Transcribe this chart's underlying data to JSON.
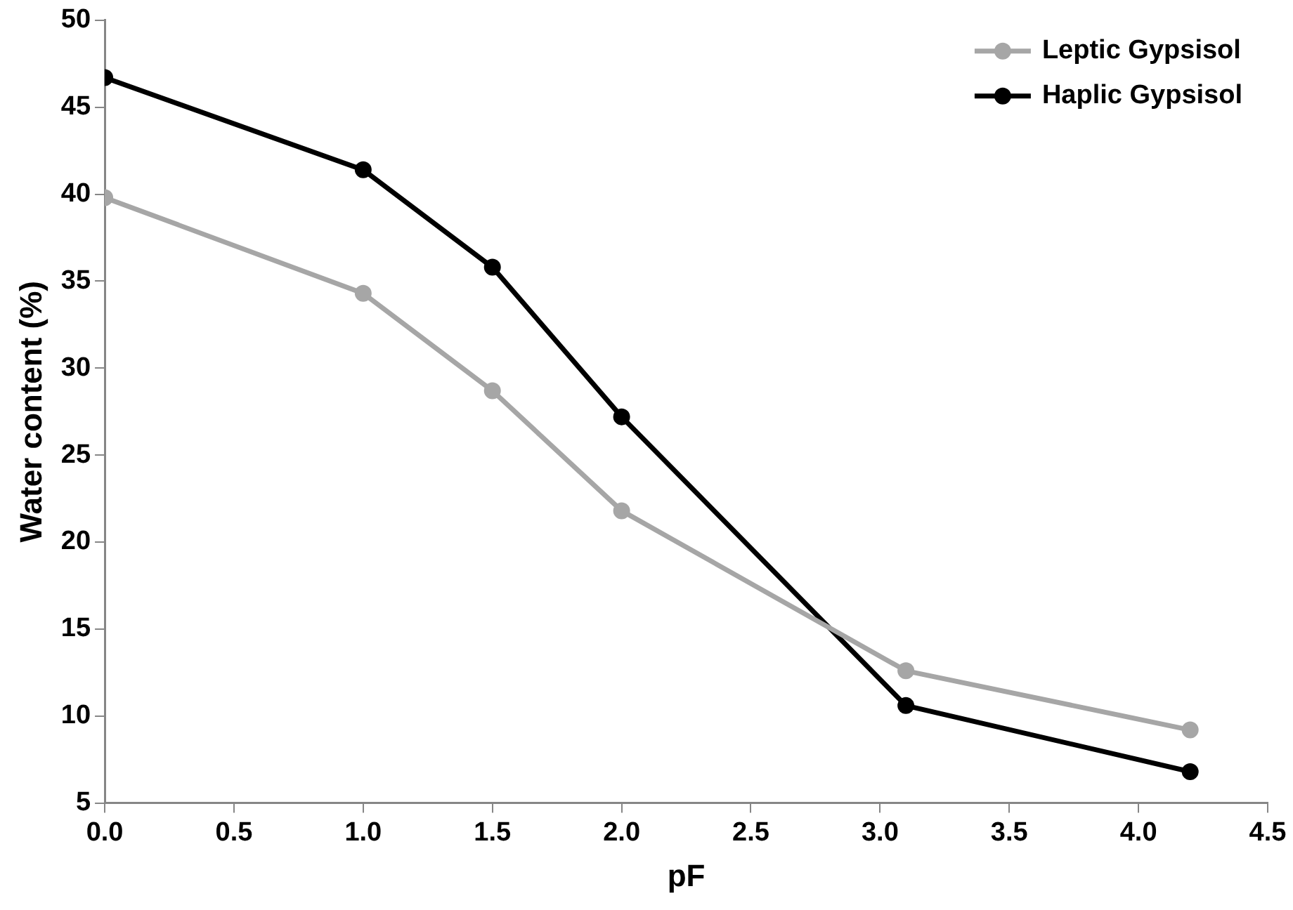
{
  "chart_data": {
    "type": "line",
    "xlabel": "pF",
    "ylabel": "Water content (%)",
    "x": [
      0,
      1,
      1.5,
      2,
      3.1,
      4.2
    ],
    "series": [
      {
        "name": "Leptic Gypsisol",
        "color": "#a6a6a6",
        "values": [
          39.8,
          34.3,
          28.7,
          21.8,
          12.6,
          9.2
        ]
      },
      {
        "name": "Haplic Gypsisol",
        "color": "#000000",
        "values": [
          46.7,
          41.4,
          35.8,
          27.2,
          10.6,
          6.8
        ]
      }
    ],
    "xlim": [
      0,
      4.5
    ],
    "xticks": [
      {
        "value": 0,
        "label": "0.0"
      },
      {
        "value": 0.5,
        "label": "0.5"
      },
      {
        "value": 1,
        "label": "1.0"
      },
      {
        "value": 1.5,
        "label": "1.5"
      },
      {
        "value": 2,
        "label": "2.0"
      },
      {
        "value": 2.5,
        "label": "2.5"
      },
      {
        "value": 3,
        "label": "3.0"
      },
      {
        "value": 3.5,
        "label": "3.5"
      },
      {
        "value": 4,
        "label": "4.0"
      },
      {
        "value": 4.5,
        "label": "4.5"
      }
    ],
    "ylim": [
      5,
      50
    ],
    "yticks": [
      5,
      10,
      15,
      20,
      25,
      30,
      35,
      40,
      45,
      50
    ],
    "grid": false,
    "legend": "top right",
    "marker": "circle",
    "line_style": "solid"
  }
}
